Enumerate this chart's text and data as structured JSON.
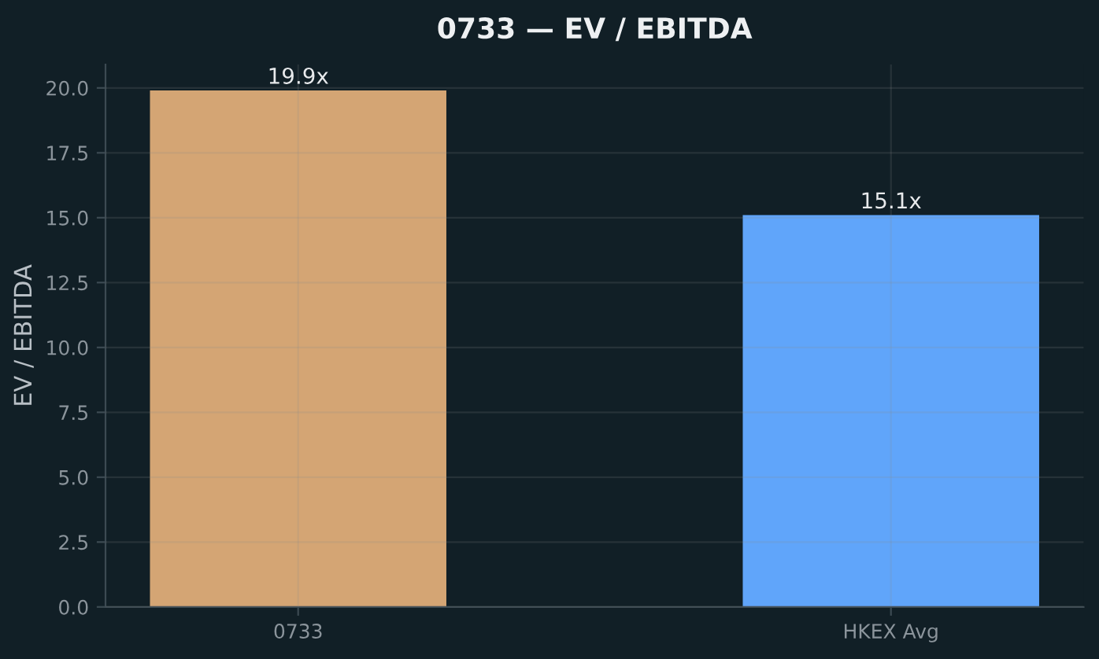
{
  "chart_data": {
    "type": "bar",
    "title": "0733 — EV / EBITDA",
    "ylabel": "EV / EBITDA",
    "categories": [
      "0733",
      "HKEX Avg"
    ],
    "values": [
      19.9,
      15.1
    ],
    "colors": [
      "#d4a574",
      "#60a5fa"
    ],
    "value_labels": [
      "19.9x",
      "15.1x"
    ],
    "ylim": [
      0,
      20.9
    ],
    "yticks": [
      {
        "value": 0,
        "label": "0.0"
      },
      2.5,
      {
        "value": 5,
        "label": "5.0"
      },
      7.5,
      {
        "value": 10,
        "label": "10.0"
      },
      12.5,
      {
        "value": 15,
        "label": "15.0"
      },
      17.5,
      {
        "value": 20,
        "label": "20.0"
      }
    ],
    "grid": true
  }
}
